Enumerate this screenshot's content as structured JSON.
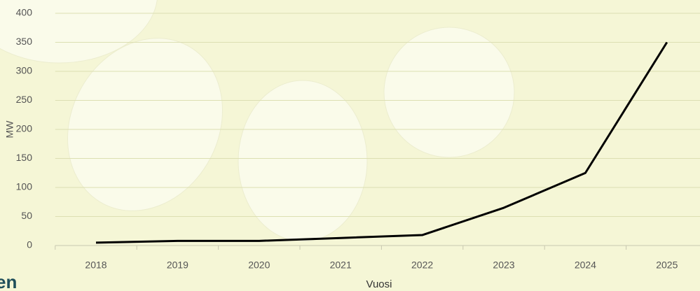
{
  "chart_data": {
    "type": "line",
    "x_label": "Vuosi",
    "y_label": "MW",
    "categories": [
      "2018",
      "2019",
      "2020",
      "2021",
      "2022",
      "2023",
      "2024",
      "2025"
    ],
    "values": [
      5,
      8,
      8,
      13,
      18,
      65,
      125,
      350
    ],
    "color": "#000000",
    "ylim": [
      0,
      400
    ],
    "yticks": [
      0,
      50,
      100,
      150,
      200,
      250,
      300,
      350,
      400
    ],
    "grid": true
  },
  "logo_text": "en"
}
